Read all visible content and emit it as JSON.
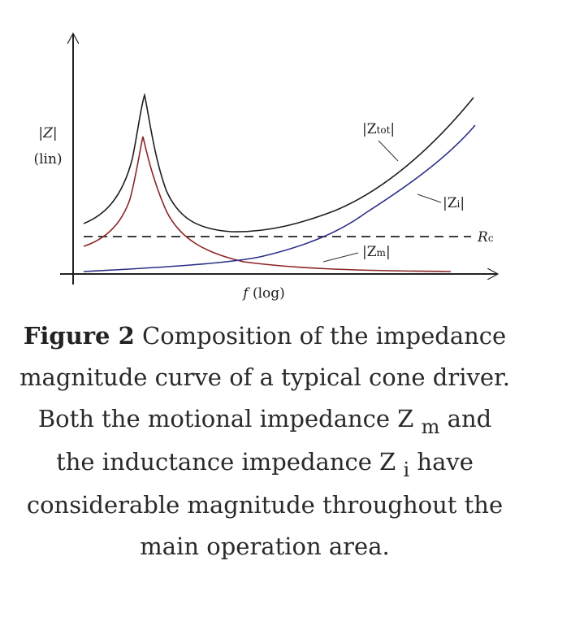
{
  "figure": {
    "y_axis_label_line1": "|Z|",
    "y_axis_label_line2": "(lin)",
    "x_axis_label_var": "f",
    "x_axis_label_unit": "(log)",
    "curves": [
      {
        "id": "ztot",
        "pre": "|Z",
        "sub": "tot",
        "post": "|",
        "color": "#1e1e1e"
      },
      {
        "id": "zi",
        "pre": "|Z",
        "sub": "i",
        "post": "|",
        "color": "#2b2f86"
      },
      {
        "id": "zm",
        "pre": "|Z",
        "sub": "m",
        "post": "|",
        "color": "#8b2525"
      }
    ],
    "reference_line": {
      "main": "R",
      "sub": "c",
      "style": "dashed"
    }
  },
  "caption": {
    "label": "Figure 2",
    "text_1": "Composition of the impedance magnitude curve of a typical cone driver. Both the motional impedance Z",
    "sub_1": "m",
    "text_2": "and the inductance impedance Z",
    "sub_2": "i",
    "text_3": "have considerable magnitude throughout the main operation area."
  }
}
